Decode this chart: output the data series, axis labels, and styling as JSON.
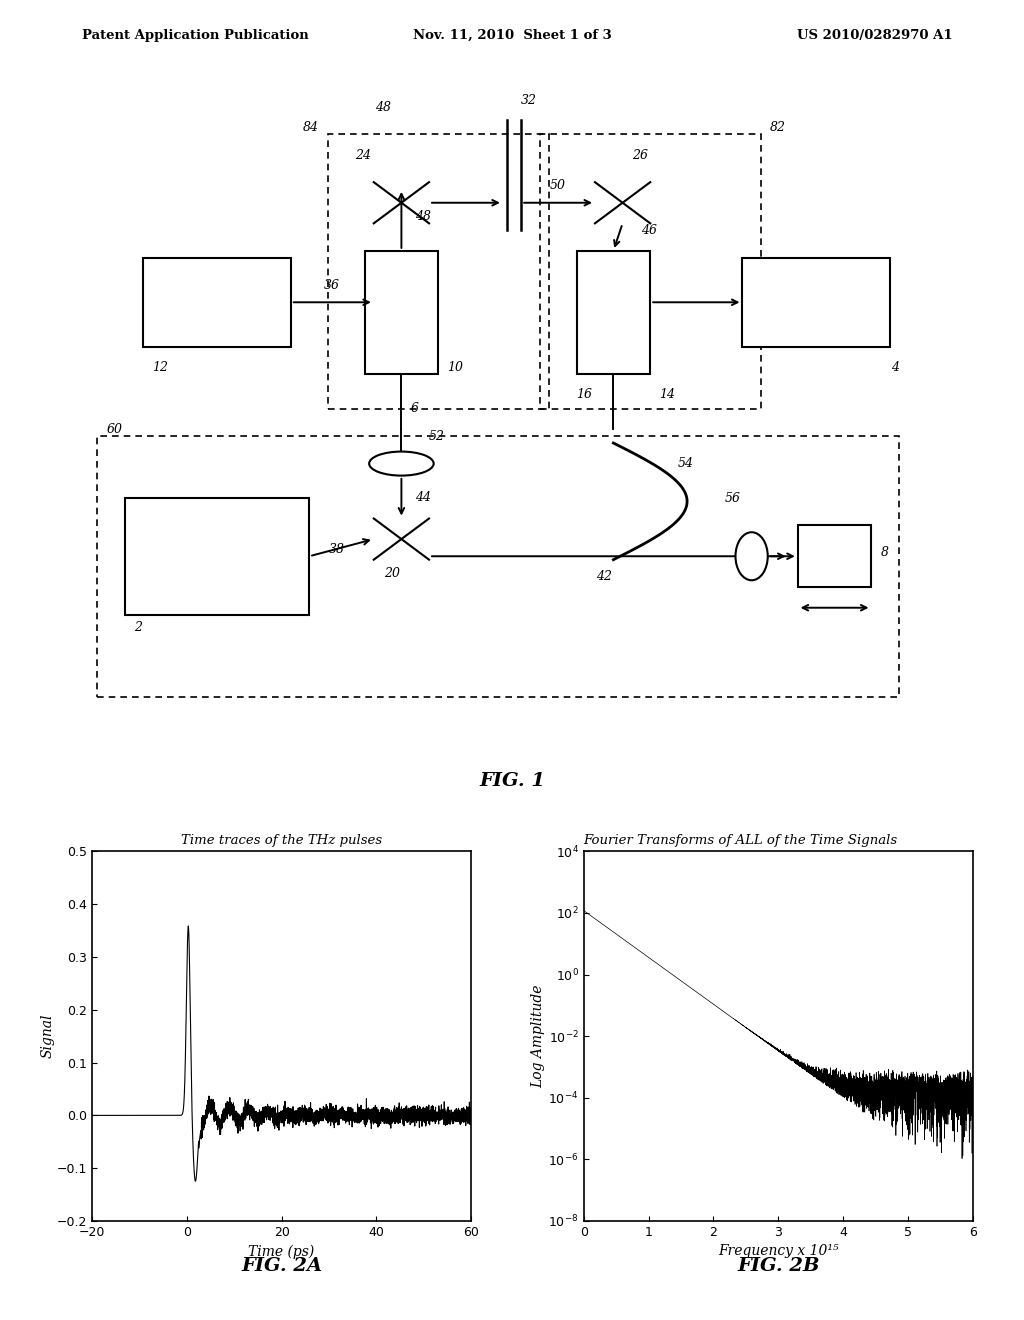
{
  "page_header_left": "Patent Application Publication",
  "page_header_center": "Nov. 11, 2010  Sheet 1 of 3",
  "page_header_right": "US 2010/0282970 A1",
  "fig1_caption": "FIG. 1",
  "fig2a_caption": "FIG. 2A",
  "fig2b_caption": "FIG. 2B",
  "fig2a_title": "Time traces of the THz pulses",
  "fig2b_title": "Fourier Transforms of ALL of the Time Signals",
  "fig2a_xlabel": "Time (ps)",
  "fig2a_ylabel": "Signal",
  "fig2b_xlabel": "Frequency x 10¹⁵",
  "fig2b_ylabel": "Log Amplitude",
  "fig2a_xlim": [
    -20,
    60
  ],
  "fig2a_ylim": [
    -0.2,
    0.5
  ],
  "fig2a_xticks": [
    -20,
    0,
    20,
    40,
    60
  ],
  "fig2a_yticks": [
    -0.2,
    -0.1,
    0,
    0.1,
    0.2,
    0.3,
    0.4,
    0.5
  ],
  "fig2b_xlim": [
    0,
    6
  ],
  "fig2b_xticks": [
    0,
    1,
    2,
    3,
    4,
    5,
    6
  ],
  "background_color": "#ffffff",
  "line_color": "#000000"
}
